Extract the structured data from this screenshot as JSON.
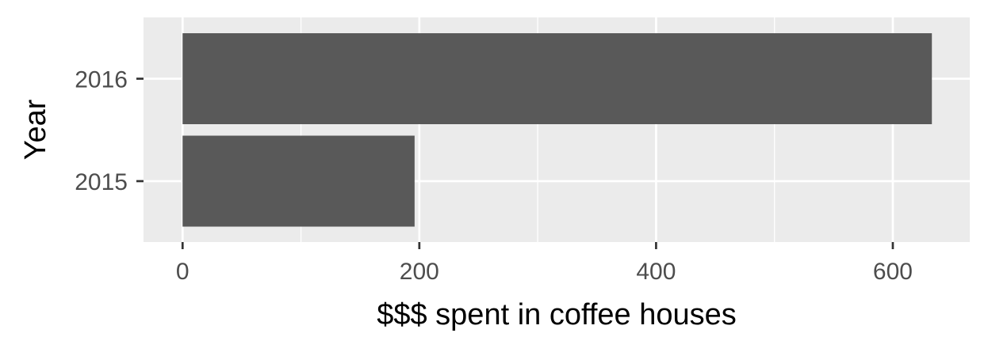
{
  "chart_data": {
    "type": "bar",
    "orientation": "horizontal",
    "categories": [
      "2015",
      "2016"
    ],
    "values": [
      196,
      633
    ],
    "xlabel": "$$$ spent in coffee houses",
    "ylabel": "Year",
    "xlim": [
      -33,
      665
    ],
    "xticks": [
      0,
      200,
      400,
      600
    ],
    "xtick_labels": [
      "0",
      "200",
      "400",
      "600"
    ],
    "grid": true,
    "colors": {
      "panel": "#ebebeb",
      "grid": "#ffffff",
      "bar": "#595959",
      "tick_text": "#4d4d4d",
      "tick_mark": "#333333",
      "title_text": "#000000"
    }
  }
}
